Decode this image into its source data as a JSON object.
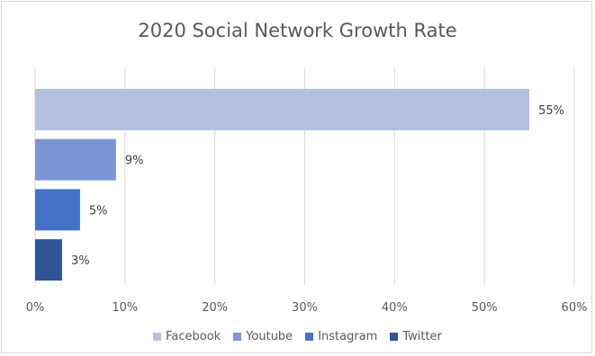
{
  "chart_data": {
    "type": "bar",
    "orientation": "horizontal",
    "title": "2020 Social Network Growth Rate",
    "categories": [
      "Facebook",
      "Youtube",
      "Instagram",
      "Twitter"
    ],
    "values": [
      55,
      9,
      5,
      3
    ],
    "data_labels": [
      "55%",
      "9%",
      "5%",
      "3%"
    ],
    "colors": [
      "#b4c0e0",
      "#7b96d6",
      "#4472c4",
      "#2f5597"
    ],
    "xlim": [
      0,
      60
    ],
    "x_ticks": [
      0,
      10,
      20,
      30,
      40,
      50,
      60
    ],
    "x_tick_labels": [
      "0%",
      "10%",
      "20%",
      "30%",
      "40%",
      "50%",
      "60%"
    ],
    "grid": "vertical",
    "legend_position": "bottom",
    "xlabel": "",
    "ylabel": ""
  }
}
